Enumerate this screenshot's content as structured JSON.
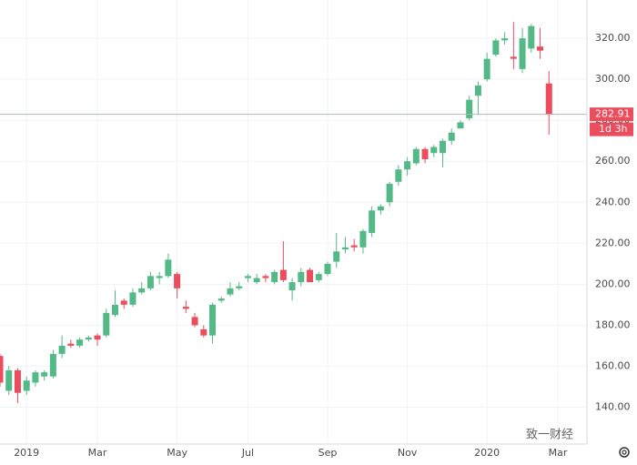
{
  "chart_data": {
    "type": "candlestick",
    "categories": [
      null,
      null,
      null,
      "2019",
      null,
      null,
      null,
      null,
      null,
      null,
      null,
      "Mar",
      null,
      null,
      null,
      null,
      null,
      null,
      null,
      null,
      "May",
      null,
      null,
      null,
      null,
      null,
      null,
      null,
      "Jul",
      null,
      null,
      null,
      null,
      null,
      null,
      null,
      null,
      "Sep",
      null,
      null,
      null,
      null,
      null,
      null,
      null,
      null,
      "Nov",
      null,
      null,
      null,
      null,
      null,
      null,
      null,
      null,
      "2020",
      null,
      null,
      null,
      null,
      null,
      null,
      null,
      "Mar"
    ],
    "open": [
      165,
      148,
      158,
      148,
      152,
      155,
      155,
      166,
      171,
      170,
      173,
      175,
      175,
      185,
      192,
      190,
      196,
      198,
      203,
      204,
      205,
      189,
      184,
      178,
      175,
      192,
      195,
      198,
      203,
      201,
      204,
      201,
      207,
      197,
      201,
      207,
      202,
      205,
      211,
      217,
      219,
      218,
      225,
      236,
      240,
      250,
      256,
      259,
      266,
      264,
      264,
      270,
      276,
      281,
      292,
      300,
      312,
      319,
      311,
      305,
      315,
      316,
      298,
      null
    ],
    "high": [
      166,
      160,
      159,
      155,
      158,
      158,
      168,
      175,
      173,
      174,
      175,
      176,
      188,
      197,
      193,
      198,
      201,
      206,
      206,
      215,
      206,
      192,
      186,
      180,
      191,
      194,
      201,
      201,
      205,
      205,
      205,
      207,
      221,
      203,
      208,
      208,
      206,
      211,
      225,
      223,
      222,
      227,
      238,
      239,
      250,
      258,
      262,
      267,
      267,
      268,
      271,
      276,
      280,
      292,
      299,
      313,
      320,
      323,
      328,
      325,
      327,
      325,
      304,
      null
    ],
    "low": [
      150,
      146,
      142,
      146,
      150,
      153,
      154,
      164,
      169,
      169,
      172,
      170,
      174,
      184,
      188,
      189,
      195,
      197,
      200,
      203,
      193,
      186,
      179,
      174,
      171,
      191,
      194,
      197,
      201,
      200,
      201,
      200,
      201,
      192,
      199,
      201,
      201,
      204,
      208,
      215,
      216,
      215,
      223,
      234,
      238,
      248,
      253,
      258,
      259,
      262,
      257,
      268,
      276,
      280,
      283,
      299,
      311,
      317,
      305,
      303,
      313,
      310,
      273,
      null
    ],
    "close": [
      152,
      158,
      147,
      153,
      157,
      157,
      166,
      170,
      170,
      173,
      174,
      173,
      186,
      190,
      190,
      196,
      198,
      204,
      204,
      212,
      198,
      188,
      180,
      175,
      190,
      193,
      198,
      199,
      204,
      203,
      203,
      206,
      202,
      201,
      206,
      201,
      205,
      210,
      216,
      218,
      218,
      226,
      236,
      238,
      249,
      256,
      260,
      266,
      261,
      267,
      270,
      274,
      279,
      290,
      297,
      310,
      319,
      320,
      310,
      320,
      326,
      314,
      283,
      null
    ],
    "up_color": "#53b987",
    "down_color": "#eb4d5c",
    "ylim": [
      122,
      338.7
    ],
    "yticks": [
      {
        "value": 140,
        "label": "140.00"
      },
      {
        "value": 160,
        "label": "160.00"
      },
      {
        "value": 180,
        "label": "180.00"
      },
      {
        "value": 200,
        "label": "200.00"
      },
      {
        "value": 220,
        "label": "220.00"
      },
      {
        "value": 240,
        "label": "240.00"
      },
      {
        "value": 260,
        "label": "260.00"
      },
      {
        "value": 280,
        "label": "280.00"
      },
      {
        "value": 300,
        "label": "300.00"
      },
      {
        "value": 320,
        "label": "320.00"
      }
    ],
    "grid": true,
    "last_price": 282.91,
    "countdown": "1d 3h",
    "watermark": "致一财经"
  }
}
